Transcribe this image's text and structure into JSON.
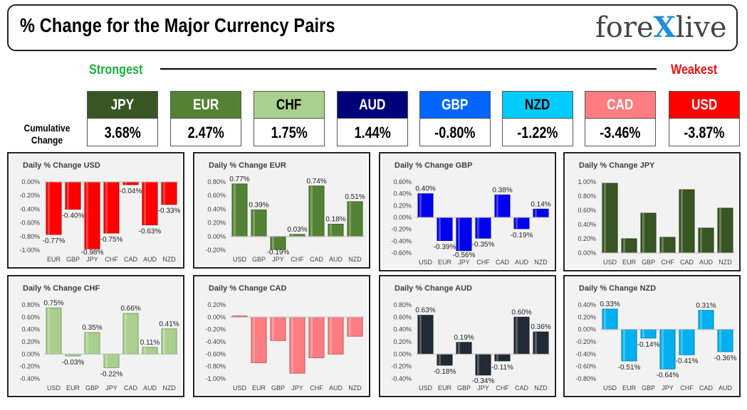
{
  "header": {
    "title": "% Change for the Major Currency Pairs"
  },
  "logo": {
    "pre": "fore",
    "x": "X",
    "post": "live"
  },
  "ranking": {
    "strongest": "Strongest",
    "weakest": "Weakest"
  },
  "cumulative_label": "Cumulative Change",
  "cumulative": [
    {
      "ccy": "JPY",
      "value": "3.68%",
      "bg": "#375623",
      "fg": "#ffffff"
    },
    {
      "ccy": "EUR",
      "value": "2.47%",
      "bg": "#548235",
      "fg": "#ffffff"
    },
    {
      "ccy": "CHF",
      "value": "1.75%",
      "bg": "#a9d08e",
      "fg": "#000000"
    },
    {
      "ccy": "AUD",
      "value": "1.44%",
      "bg": "#00007a",
      "fg": "#ffffff"
    },
    {
      "ccy": "GBP",
      "value": "-0.80%",
      "bg": "#0066ff",
      "fg": "#ffffff"
    },
    {
      "ccy": "NZD",
      "value": "-1.22%",
      "bg": "#00ccff",
      "fg": "#000000"
    },
    {
      "ccy": "CAD",
      "value": "-3.46%",
      "bg": "#ff7c80",
      "fg": "#ffffff"
    },
    {
      "ccy": "USD",
      "value": "-3.87%",
      "bg": "#ff0000",
      "fg": "#ffffff"
    }
  ],
  "chart_data": [
    {
      "type": "bar",
      "title": "Daily % Change USD",
      "categories": [
        "EUR",
        "GBP",
        "JPY",
        "CHF",
        "CAD",
        "AUD",
        "NZD"
      ],
      "values": [
        -0.77,
        -0.4,
        -0.98,
        -0.75,
        -0.04,
        -0.63,
        -0.33
      ],
      "labels": [
        "-0.77%",
        "-0.40%",
        "-0.98%",
        "-0.75%",
        "-0.04%",
        "-0.63%",
        "-0.33%"
      ],
      "ylim": [
        -1.0,
        0.0
      ],
      "yticks": [
        "0.00%",
        "-0.20%",
        "-0.40%",
        "-0.60%",
        "-0.80%",
        "-1.00%"
      ],
      "color": "#ff0000"
    },
    {
      "type": "bar",
      "title": "Daily % Change EUR",
      "categories": [
        "USD",
        "GBP",
        "JPY",
        "CHF",
        "CAD",
        "AUD",
        "NZD"
      ],
      "values": [
        0.77,
        0.39,
        -0.19,
        0.03,
        0.74,
        0.18,
        0.51
      ],
      "labels": [
        "0.77%",
        "0.39%",
        "-0.19%",
        "0.03%",
        "0.74%",
        "0.18%",
        "0.51%"
      ],
      "ylim": [
        -0.2,
        0.8
      ],
      "yticks": [
        "0.80%",
        "0.60%",
        "0.40%",
        "0.20%",
        "0.00%",
        "-0.20%"
      ],
      "color": "#548235"
    },
    {
      "type": "bar",
      "title": "Daily % Change GBP",
      "categories": [
        "USD",
        "EUR",
        "JPY",
        "CHF",
        "CAD",
        "AUD",
        "NZD"
      ],
      "values": [
        0.4,
        -0.39,
        -0.56,
        -0.35,
        0.38,
        -0.19,
        0.14
      ],
      "labels": [
        "0.40%",
        "-0.39%",
        "-0.56%",
        "-0.35%",
        "0.38%",
        "-0.19%",
        "0.14%"
      ],
      "ylim": [
        -0.6,
        0.6
      ],
      "yticks": [
        "0.60%",
        "0.40%",
        "0.20%",
        "0.00%",
        "-0.20%",
        "-0.40%",
        "-0.60%"
      ],
      "color": "#0000ee"
    },
    {
      "type": "bar",
      "title": "Daily % Change JPY",
      "categories": [
        "USD",
        "EUR",
        "GBP",
        "CHF",
        "CAD",
        "AUD",
        "NZD"
      ],
      "values": [
        0.98,
        0.2,
        0.56,
        0.22,
        0.89,
        0.35,
        0.63
      ],
      "labels": [],
      "ylim": [
        0.0,
        1.0
      ],
      "yticks": [
        "1.00%",
        "0.80%",
        "0.60%",
        "0.40%",
        "0.20%",
        "0.00%"
      ],
      "color": "#375623"
    },
    {
      "type": "bar",
      "title": "Daily % Change CHF",
      "categories": [
        "USD",
        "EUR",
        "GBP",
        "JPY",
        "CAD",
        "AUD",
        "NZD"
      ],
      "values": [
        0.75,
        -0.03,
        0.35,
        -0.22,
        0.66,
        0.11,
        0.41
      ],
      "labels": [
        "0.75%",
        "-0.03%",
        "0.35%",
        "-0.22%",
        "0.66%",
        "0.11%",
        "0.41%"
      ],
      "ylim": [
        -0.4,
        0.8
      ],
      "yticks": [
        "0.80%",
        "0.60%",
        "0.40%",
        "0.20%",
        "0.00%",
        "-0.20%",
        "-0.40%"
      ],
      "color": "#a9d08e"
    },
    {
      "type": "bar",
      "title": "Daily % Change CAD",
      "categories": [
        "USD",
        "EUR",
        "GBP",
        "JPY",
        "CHF",
        "AUD",
        "NZD"
      ],
      "values": [
        0.02,
        -0.74,
        -0.38,
        -0.91,
        -0.66,
        -0.6,
        -0.31
      ],
      "labels": [],
      "ylim": [
        -1.0,
        0.2
      ],
      "yticks": [
        "0.20%",
        "0.00%",
        "-0.20%",
        "-0.40%",
        "-0.60%",
        "-0.80%",
        "-1.00%"
      ],
      "color": "#ff7c80"
    },
    {
      "type": "bar",
      "title": "Daily % Change AUD",
      "categories": [
        "USD",
        "EUR",
        "GBP",
        "JPY",
        "CHF",
        "CAD",
        "NZD"
      ],
      "values": [
        0.63,
        -0.18,
        0.19,
        -0.34,
        -0.11,
        0.6,
        0.36
      ],
      "labels": [
        "0.63%",
        "-0.18%",
        "0.19%",
        "-0.34%",
        "-0.11%",
        "0.60%",
        "0.36%"
      ],
      "ylim": [
        -0.4,
        0.8
      ],
      "yticks": [
        "0.80%",
        "0.60%",
        "0.40%",
        "0.20%",
        "0.00%",
        "-0.20%",
        "-0.40%"
      ],
      "color": "#222a35"
    },
    {
      "type": "bar",
      "title": "Daily % Change NZD",
      "categories": [
        "USD",
        "EUR",
        "GBP",
        "JPY",
        "CHF",
        "CAD",
        "AUD"
      ],
      "values": [
        0.33,
        -0.51,
        -0.14,
        -0.64,
        -0.41,
        0.31,
        -0.36
      ],
      "labels": [
        "0.33%",
        "-0.51%",
        "-0.14%",
        "-0.64%",
        "-0.41%",
        "0.31%",
        "-0.36%"
      ],
      "ylim": [
        -0.8,
        0.4
      ],
      "yticks": [
        "0.40%",
        "0.20%",
        "0.00%",
        "-0.20%",
        "-0.40%",
        "-0.60%",
        "-0.80%"
      ],
      "color": "#00b0f0"
    }
  ]
}
